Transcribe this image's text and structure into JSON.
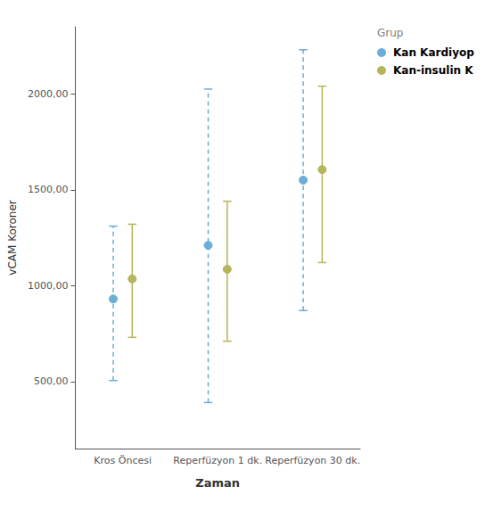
{
  "chart_data": {
    "type": "scatter",
    "xlabel": "Zaman",
    "ylabel": "vCAM Koroner",
    "legend_title": "Grup",
    "categories": [
      "Kros Öncesi",
      "Reperfüzyon 1 dk.",
      "Reperfüzyon 30 dk."
    ],
    "series": [
      {
        "name": "Kan Kardiyop",
        "color": "#6baed6",
        "line_style": "dashed",
        "marker": "circle",
        "values": [
          930,
          1210,
          1550
        ],
        "lower": [
          505,
          390,
          870
        ],
        "upper": [
          1310,
          2025,
          2230
        ]
      },
      {
        "name": "Kan-insulin K",
        "color": "#b5b55a",
        "line_style": "solid",
        "marker": "circle",
        "values": [
          1035,
          1085,
          1605
        ],
        "lower": [
          730,
          710,
          1120
        ],
        "upper": [
          1320,
          1440,
          2040
        ]
      }
    ],
    "ylim": [
      150,
      2350
    ],
    "yticks": [
      {
        "value": 500,
        "label": "500,00"
      },
      {
        "value": 1000,
        "label": "1000,00"
      },
      {
        "value": 1500,
        "label": "1500,00"
      },
      {
        "value": 2000,
        "label": "2000,00"
      }
    ],
    "grid": false,
    "legend": "right"
  }
}
